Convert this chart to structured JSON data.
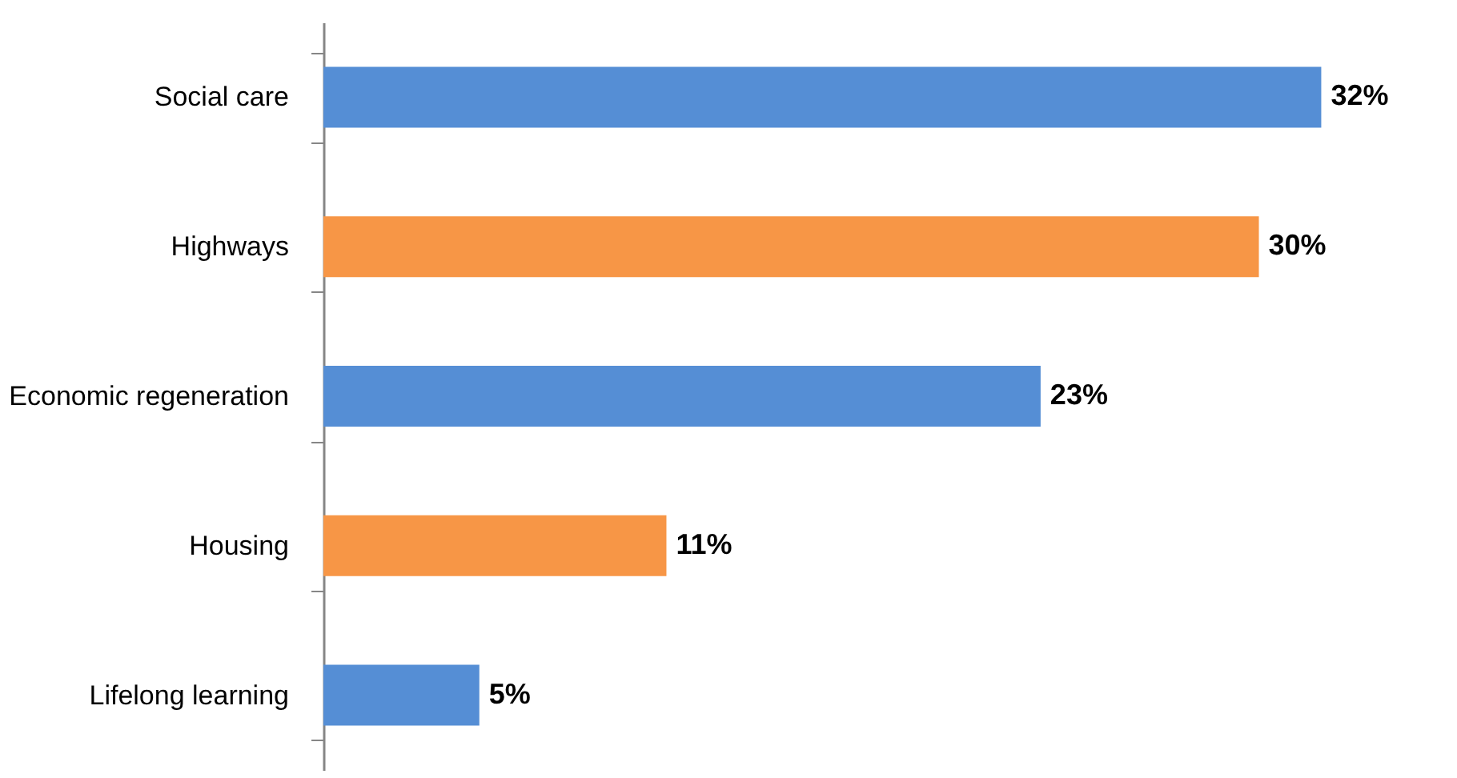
{
  "chart_data": {
    "type": "bar",
    "orientation": "horizontal",
    "categories": [
      "Social care",
      "Highways",
      "Economic regeneration",
      "Housing",
      "Lifelong learning"
    ],
    "values": [
      32,
      30,
      23,
      11,
      5
    ],
    "colors": [
      "#558ed5",
      "#f79646",
      "#558ed5",
      "#f79646",
      "#558ed5"
    ],
    "value_labels": [
      "32%",
      "30%",
      "23%",
      "11%",
      "5%"
    ],
    "grid": false
  }
}
